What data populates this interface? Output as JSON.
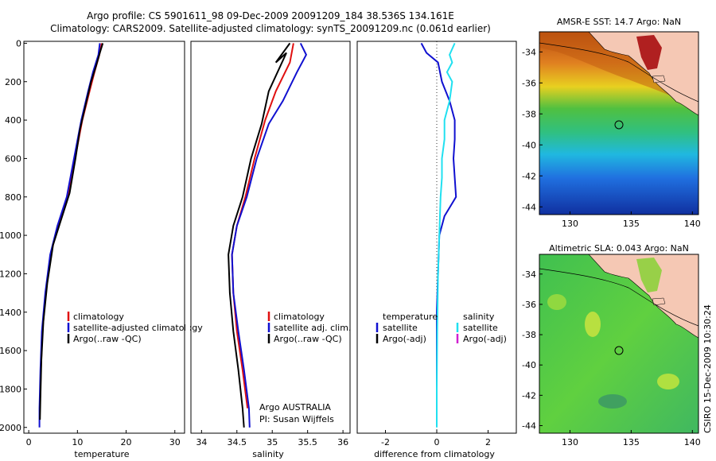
{
  "title_line1": "Argo profile: CS 5901611_98 09-Dec-2009 20091209_184 38.536S 134.161E",
  "title_line2": "Climatology: CARS2009. Satellite-adjusted climatology: synTS_20091209.nc (0.061d earlier)",
  "footer_vertical": "CSIRO 15-Dec-2009 10:30:24",
  "colors": {
    "climatology": "#e01010",
    "satellite": "#1010d0",
    "argo": "#000000",
    "sat_sal": "#20e0f0",
    "argo_sal_adj": "#d020d0"
  },
  "chart_data": [
    {
      "type": "line",
      "id": "temperature",
      "xlabel": "temperature",
      "ylabel": "",
      "xlim": [
        -1,
        32
      ],
      "ylim": [
        2030,
        -10
      ],
      "y_inverted": true,
      "xticks": [
        "0",
        "10",
        "20",
        "30"
      ],
      "yticks": [
        "0",
        "200",
        "400",
        "600",
        "800",
        "1000",
        "1200",
        "1400",
        "1600",
        "1800",
        "2000"
      ],
      "legend": [
        {
          "label": "climatology",
          "color": "#e01010"
        },
        {
          "label": "satellite-adjusted climatology",
          "color": "#1010d0"
        },
        {
          "label": "Argo(..raw -QC)",
          "color": "#000000"
        }
      ],
      "series": [
        {
          "name": "climatology",
          "color": "#e01010",
          "points": [
            [
              15.0,
              0
            ],
            [
              14.5,
              60
            ],
            [
              13.5,
              150
            ],
            [
              12.5,
              250
            ],
            [
              11.0,
              400
            ],
            [
              9.5,
              600
            ],
            [
              8.0,
              800
            ],
            [
              6.0,
              950
            ],
            [
              4.5,
              1100
            ],
            [
              3.5,
              1300
            ],
            [
              2.8,
              1500
            ],
            [
              2.5,
              1700
            ],
            [
              2.3,
              1900
            ]
          ]
        },
        {
          "name": "satellite-adjusted climatology",
          "color": "#1010d0",
          "points": [
            [
              14.6,
              0
            ],
            [
              14.3,
              60
            ],
            [
              13.2,
              150
            ],
            [
              12.2,
              250
            ],
            [
              10.8,
              400
            ],
            [
              9.3,
              600
            ],
            [
              7.8,
              800
            ],
            [
              5.9,
              950
            ],
            [
              4.4,
              1100
            ],
            [
              3.4,
              1300
            ],
            [
              2.7,
              1500
            ],
            [
              2.4,
              1700
            ],
            [
              2.2,
              1900
            ],
            [
              2.2,
              2000
            ]
          ]
        },
        {
          "name": "Argo(..raw -QC)",
          "color": "#000000",
          "points": [
            [
              15.2,
              0
            ],
            [
              14.6,
              50
            ],
            [
              13.8,
              120
            ],
            [
              12.8,
              200
            ],
            [
              11.6,
              330
            ],
            [
              10.5,
              450
            ],
            [
              9.6,
              600
            ],
            [
              8.4,
              780
            ],
            [
              6.5,
              930
            ],
            [
              5.0,
              1050
            ],
            [
              3.8,
              1250
            ],
            [
              3.0,
              1450
            ],
            [
              2.6,
              1650
            ],
            [
              2.4,
              1850
            ],
            [
              2.3,
              1960
            ]
          ]
        }
      ]
    },
    {
      "type": "line",
      "id": "salinity",
      "xlabel": "salinity",
      "xlim": [
        33.85,
        36.1
      ],
      "ylim": [
        2030,
        -10
      ],
      "y_inverted": true,
      "xticks": [
        "34",
        "34.5",
        "35",
        "35.5",
        "36"
      ],
      "legend": [
        {
          "label": "climatology",
          "color": "#e01010"
        },
        {
          "label": "satellite adj. clim.",
          "color": "#1010d0"
        },
        {
          "label": "Argo(..raw -QC)",
          "color": "#000000"
        }
      ],
      "annotation": [
        "Argo AUSTRALIA",
        "PI: Susan Wijffels"
      ],
      "series": [
        {
          "name": "climatology",
          "color": "#e01010",
          "points": [
            [
              35.3,
              0
            ],
            [
              35.25,
              100
            ],
            [
              35.05,
              250
            ],
            [
              34.9,
              400
            ],
            [
              34.75,
              600
            ],
            [
              34.62,
              800
            ],
            [
              34.5,
              950
            ],
            [
              34.43,
              1100
            ],
            [
              34.45,
              1300
            ],
            [
              34.5,
              1500
            ],
            [
              34.58,
              1700
            ],
            [
              34.65,
              1900
            ]
          ]
        },
        {
          "name": "satellite adj. clim.",
          "color": "#1010d0",
          "points": [
            [
              35.4,
              0
            ],
            [
              35.48,
              60
            ],
            [
              35.35,
              150
            ],
            [
              35.15,
              300
            ],
            [
              34.95,
              420
            ],
            [
              34.78,
              600
            ],
            [
              34.64,
              800
            ],
            [
              34.5,
              950
            ],
            [
              34.43,
              1100
            ],
            [
              34.45,
              1300
            ],
            [
              34.52,
              1500
            ],
            [
              34.6,
              1700
            ],
            [
              34.67,
              1900
            ],
            [
              34.68,
              2000
            ]
          ]
        },
        {
          "name": "Argo(..raw -QC)",
          "color": "#000000",
          "points": [
            [
              35.25,
              0
            ],
            [
              35.05,
              100
            ],
            [
              35.2,
              50
            ],
            [
              34.95,
              250
            ],
            [
              34.85,
              420
            ],
            [
              34.7,
              600
            ],
            [
              34.58,
              800
            ],
            [
              34.45,
              950
            ],
            [
              34.38,
              1100
            ],
            [
              34.4,
              1300
            ],
            [
              34.45,
              1500
            ],
            [
              34.52,
              1700
            ],
            [
              34.58,
              1900
            ],
            [
              34.6,
              2000
            ]
          ]
        }
      ]
    },
    {
      "type": "line",
      "id": "difference",
      "xlabel": "difference from climatology",
      "xlim": [
        -3.1,
        3.1
      ],
      "ylim": [
        2030,
        -10
      ],
      "y_inverted": true,
      "xticks": [
        "-2",
        "0",
        "2"
      ],
      "legend_header": [
        "temperature",
        "salinity"
      ],
      "legend_left": [
        {
          "label": "satellite",
          "color": "#1010d0"
        },
        {
          "label": "Argo(-adj)",
          "color": "#000000"
        }
      ],
      "legend_right": [
        {
          "label": "satellite",
          "color": "#20e0f0"
        },
        {
          "label": "Argo(-adj)",
          "color": "#d020d0"
        }
      ],
      "series": [
        {
          "name": "temperature satellite",
          "color": "#1010d0",
          "points": [
            [
              -0.6,
              0
            ],
            [
              -0.4,
              50
            ],
            [
              0.05,
              100
            ],
            [
              0.2,
              200
            ],
            [
              0.5,
              300
            ],
            [
              0.7,
              400
            ],
            [
              0.7,
              500
            ],
            [
              0.65,
              600
            ],
            [
              0.7,
              700
            ],
            [
              0.75,
              800
            ],
            [
              0.3,
              900
            ],
            [
              0.1,
              1000
            ],
            [
              0.05,
              1200
            ],
            [
              0.0,
              1400
            ],
            [
              0.0,
              1600
            ],
            [
              0.0,
              1800
            ],
            [
              0.0,
              1900
            ]
          ]
        },
        {
          "name": "salinity satellite",
          "color": "#20e0f0",
          "points": [
            [
              0.7,
              0
            ],
            [
              0.5,
              60
            ],
            [
              0.6,
              100
            ],
            [
              0.4,
              150
            ],
            [
              0.6,
              200
            ],
            [
              0.5,
              300
            ],
            [
              0.3,
              400
            ],
            [
              0.3,
              500
            ],
            [
              0.2,
              600
            ],
            [
              0.2,
              700
            ],
            [
              0.15,
              800
            ],
            [
              0.1,
              1000
            ],
            [
              0.05,
              1200
            ],
            [
              0.02,
              1500
            ],
            [
              0.0,
              1800
            ],
            [
              0.0,
              2000
            ]
          ]
        }
      ]
    },
    {
      "type": "heatmap",
      "id": "sst",
      "title": "AMSR-E SST: 14.7 Argo: NaN",
      "xticks": [
        "130",
        "135",
        "140"
      ],
      "yticks": [
        "-34",
        "-36",
        "-38",
        "-40",
        "-42",
        "-44"
      ],
      "xlim": [
        127.5,
        140.5
      ],
      "ylim": [
        -44.5,
        -32.7
      ],
      "argo_position": [
        134.161,
        -38.536
      ]
    },
    {
      "type": "heatmap",
      "id": "sla",
      "title": "Altimetric SLA: 0.043 Argo: NaN",
      "xticks": [
        "130",
        "135",
        "140"
      ],
      "yticks": [
        "-34",
        "-36",
        "-38",
        "-40",
        "-42",
        "-44"
      ],
      "xlim": [
        127.5,
        140.5
      ],
      "ylim": [
        -44.5,
        -32.7
      ],
      "argo_position": [
        134.161,
        -38.536
      ]
    }
  ]
}
